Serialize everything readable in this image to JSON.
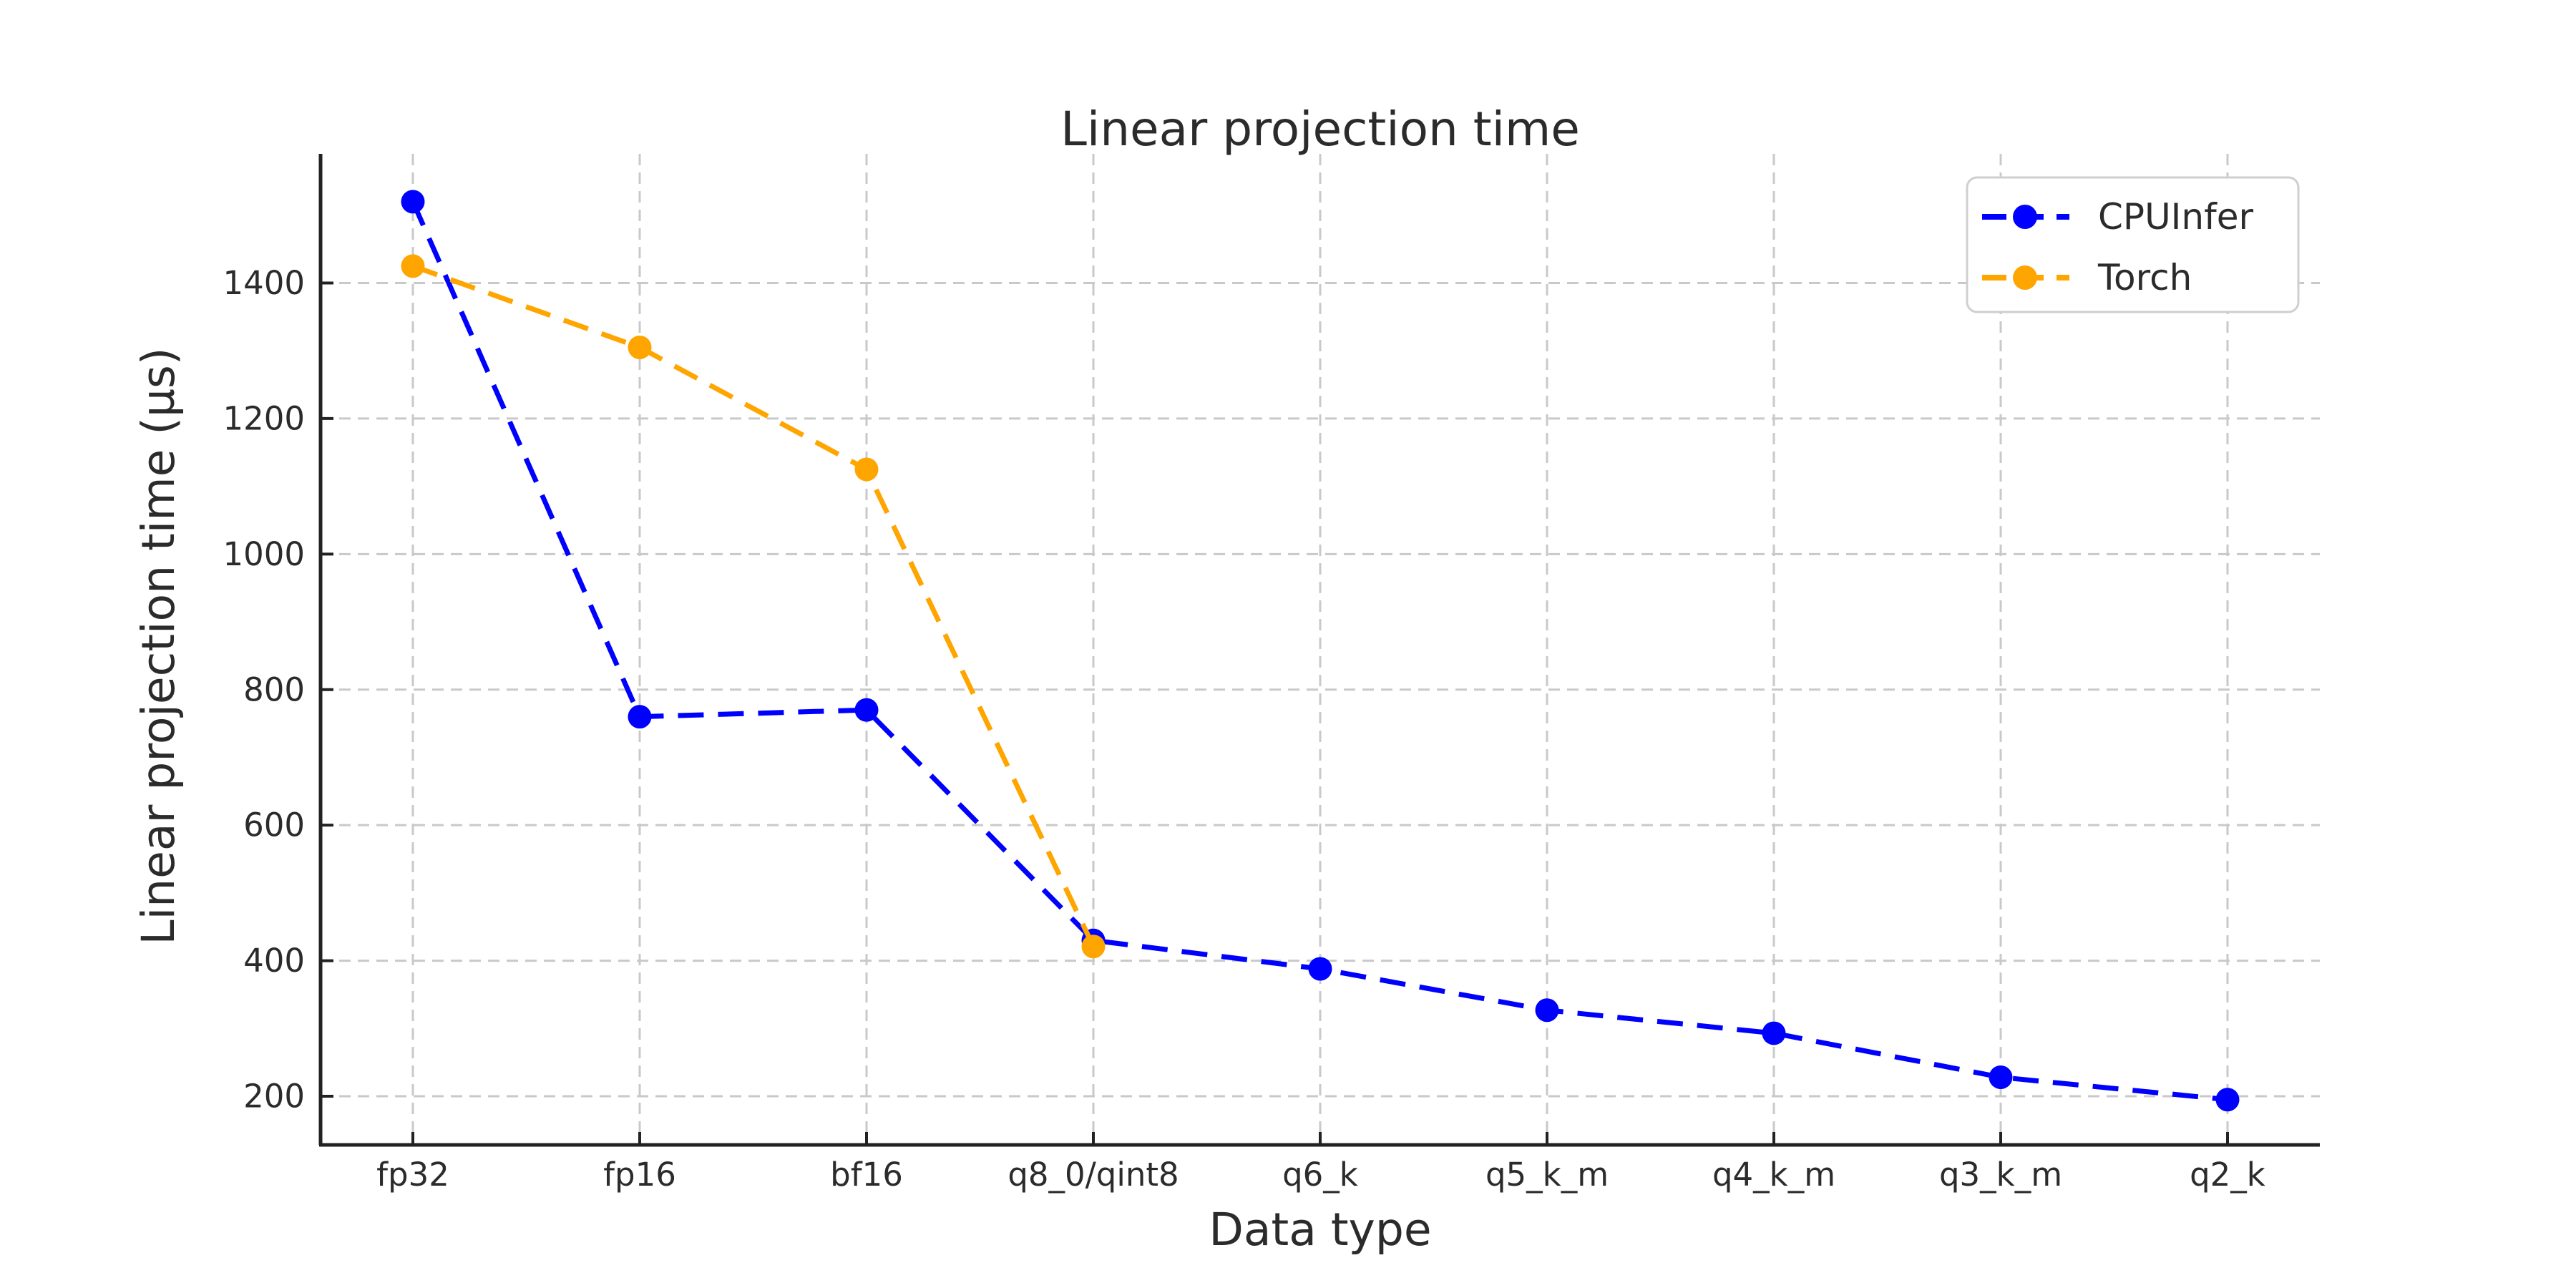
{
  "title": "Linear projection time",
  "chart_data": {
    "type": "line",
    "title": "Linear projection time",
    "xlabel": "Data type",
    "ylabel": "Linear projection time (µs)",
    "categories": [
      "fp32",
      "fp16",
      "bf16",
      "q8_0/qint8",
      "q6_k",
      "q5_k_m",
      "q4_k_m",
      "q3_k_m",
      "q2_k"
    ],
    "yticks": [
      200,
      400,
      600,
      800,
      1000,
      1200,
      1400
    ],
    "ylim": [
      128,
      1591
    ],
    "grid": "both-axes dashed light gray",
    "legend_position": "upper right",
    "series": [
      {
        "name": "CPUInfer",
        "color": "#0000ff",
        "linestyle": "dashed",
        "marker": "circle",
        "values": [
          1520,
          760,
          770,
          430,
          388,
          327,
          293,
          228,
          195
        ]
      },
      {
        "name": "Torch",
        "color": "#ffa500",
        "linestyle": "dashed",
        "marker": "circle",
        "values": [
          1425,
          1305,
          1125,
          421
        ]
      }
    ],
    "colors": {
      "text": "#2b2b2b",
      "grid": "#c9c9c9",
      "spine": "#222222",
      "legend_border": "#cfcfcf",
      "background": "#ffffff"
    }
  }
}
